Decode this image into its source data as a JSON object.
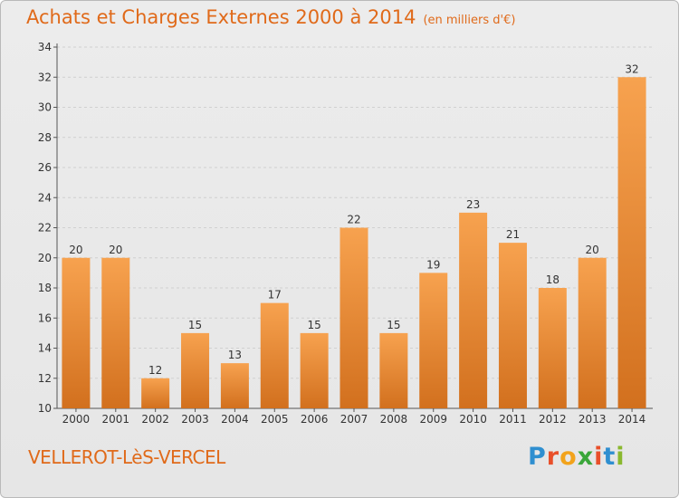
{
  "header": {
    "title": "Achats et Charges Externes 2000 à 2014",
    "unit": "(en milliers d'€)"
  },
  "footer": {
    "commune": "VELLEROT-LèS-VERCEL",
    "logo_letters": [
      "P",
      "r",
      "o",
      "x",
      "i",
      "t",
      "i"
    ],
    "logo_colors": [
      "#2f8fd0",
      "#e94f2a",
      "#f2a31c",
      "#3aa63a",
      "#e94f2a",
      "#2f8fd0",
      "#8ab82e"
    ]
  },
  "colors": {
    "bar_light": "#f7a24f",
    "bar_dark": "#d2701e",
    "title": "#e06a1a"
  },
  "chart_data": {
    "type": "bar",
    "title": "Achats et Charges Externes 2000 à 2014",
    "xlabel": "",
    "ylabel": "",
    "categories": [
      "2000",
      "2001",
      "2002",
      "2003",
      "2004",
      "2005",
      "2006",
      "2007",
      "2008",
      "2009",
      "2010",
      "2011",
      "2012",
      "2013",
      "2014"
    ],
    "values": [
      20,
      20,
      12,
      15,
      13,
      17,
      15,
      22,
      15,
      19,
      23,
      21,
      18,
      20,
      32
    ],
    "ylim": [
      10,
      34
    ],
    "yticks": [
      10,
      12,
      14,
      16,
      18,
      20,
      22,
      24,
      26,
      28,
      30,
      32,
      34
    ],
    "grid": true,
    "data_labels": true
  }
}
